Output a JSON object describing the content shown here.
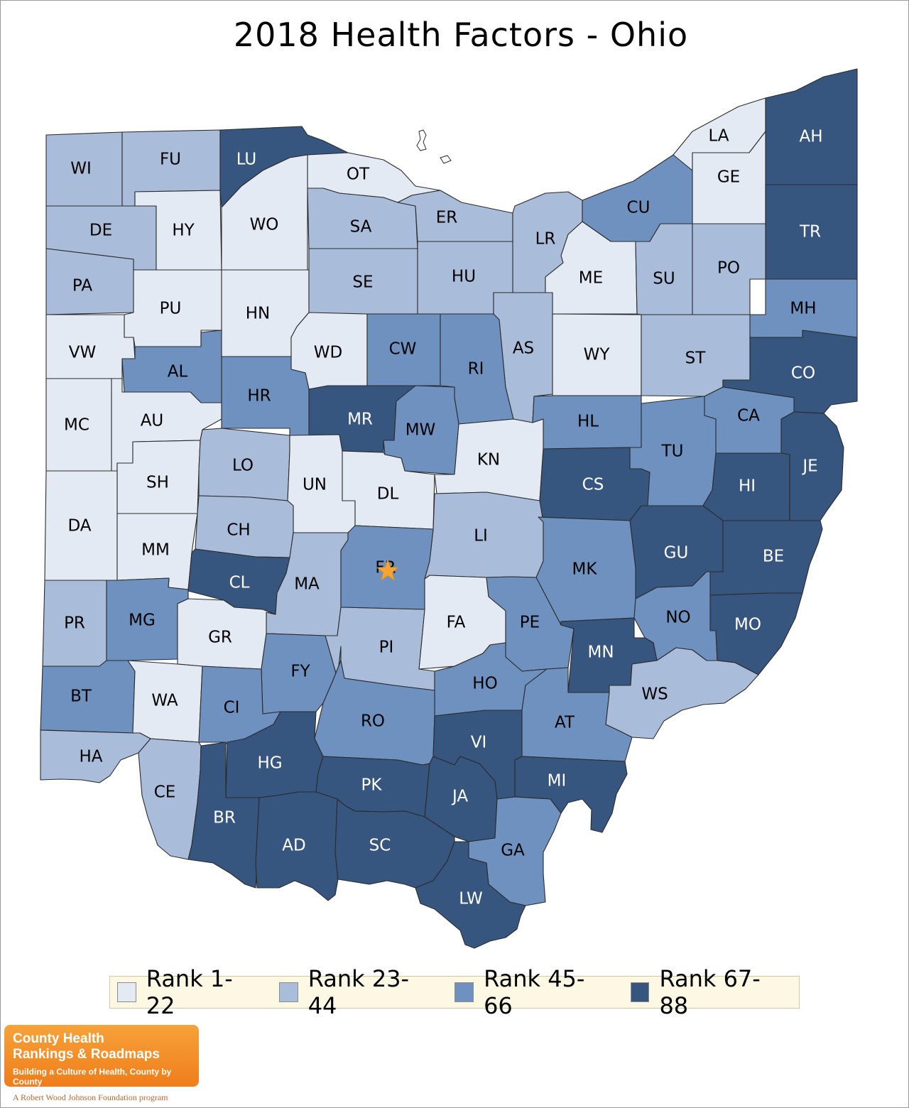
{
  "title": "2018 Health Factors - Ohio",
  "colors": {
    "rank_1_22": "#e3eaf4",
    "rank_23_44": "#a9bcda",
    "rank_45_66": "#6e91c0",
    "rank_67_88": "#36557f",
    "star": "#f4a435"
  },
  "legend": [
    {
      "label": "Rank 1-22",
      "level": "rank_1_22"
    },
    {
      "label": "Rank 23-44",
      "level": "rank_23_44"
    },
    {
      "label": "Rank 45-66",
      "level": "rank_45_66"
    },
    {
      "label": "Rank 67-88",
      "level": "rank_67_88"
    }
  ],
  "highlighted_county": "FR",
  "highlight_icon": "star-icon",
  "counties": [
    {
      "abbr": "WI",
      "level": "rank_23_44"
    },
    {
      "abbr": "FU",
      "level": "rank_23_44"
    },
    {
      "abbr": "LU",
      "level": "rank_67_88"
    },
    {
      "abbr": "OT",
      "level": "rank_1_22"
    },
    {
      "abbr": "LA",
      "level": "rank_1_22"
    },
    {
      "abbr": "AH",
      "level": "rank_67_88"
    },
    {
      "abbr": "GE",
      "level": "rank_1_22"
    },
    {
      "abbr": "DE",
      "level": "rank_23_44"
    },
    {
      "abbr": "HY",
      "level": "rank_1_22"
    },
    {
      "abbr": "WO",
      "level": "rank_1_22"
    },
    {
      "abbr": "SA",
      "level": "rank_23_44"
    },
    {
      "abbr": "ER",
      "level": "rank_23_44"
    },
    {
      "abbr": "LR",
      "level": "rank_23_44"
    },
    {
      "abbr": "CU",
      "level": "rank_45_66"
    },
    {
      "abbr": "TR",
      "level": "rank_67_88"
    },
    {
      "abbr": "PA",
      "level": "rank_23_44"
    },
    {
      "abbr": "PU",
      "level": "rank_1_22"
    },
    {
      "abbr": "HN",
      "level": "rank_1_22"
    },
    {
      "abbr": "SE",
      "level": "rank_23_44"
    },
    {
      "abbr": "HU",
      "level": "rank_23_44"
    },
    {
      "abbr": "ME",
      "level": "rank_1_22"
    },
    {
      "abbr": "SU",
      "level": "rank_23_44"
    },
    {
      "abbr": "PO",
      "level": "rank_23_44"
    },
    {
      "abbr": "MH",
      "level": "rank_45_66"
    },
    {
      "abbr": "VW",
      "level": "rank_1_22"
    },
    {
      "abbr": "AL",
      "level": "rank_45_66"
    },
    {
      "abbr": "WD",
      "level": "rank_1_22"
    },
    {
      "abbr": "CW",
      "level": "rank_45_66"
    },
    {
      "abbr": "RI",
      "level": "rank_45_66"
    },
    {
      "abbr": "AS",
      "level": "rank_23_44"
    },
    {
      "abbr": "WY",
      "level": "rank_1_22"
    },
    {
      "abbr": "ST",
      "level": "rank_23_44"
    },
    {
      "abbr": "CO",
      "level": "rank_67_88"
    },
    {
      "abbr": "MC",
      "level": "rank_1_22"
    },
    {
      "abbr": "AU",
      "level": "rank_1_22"
    },
    {
      "abbr": "HR",
      "level": "rank_45_66"
    },
    {
      "abbr": "MR",
      "level": "rank_67_88"
    },
    {
      "abbr": "MW",
      "level": "rank_45_66"
    },
    {
      "abbr": "HL",
      "level": "rank_45_66"
    },
    {
      "abbr": "CA",
      "level": "rank_45_66"
    },
    {
      "abbr": "SH",
      "level": "rank_1_22"
    },
    {
      "abbr": "LO",
      "level": "rank_23_44"
    },
    {
      "abbr": "UN",
      "level": "rank_1_22"
    },
    {
      "abbr": "DL",
      "level": "rank_1_22"
    },
    {
      "abbr": "KN",
      "level": "rank_1_22"
    },
    {
      "abbr": "TU",
      "level": "rank_45_66"
    },
    {
      "abbr": "JE",
      "level": "rank_67_88"
    },
    {
      "abbr": "CS",
      "level": "rank_67_88"
    },
    {
      "abbr": "HI",
      "level": "rank_67_88"
    },
    {
      "abbr": "DA",
      "level": "rank_1_22"
    },
    {
      "abbr": "MM",
      "level": "rank_1_22"
    },
    {
      "abbr": "CH",
      "level": "rank_23_44"
    },
    {
      "abbr": "LI",
      "level": "rank_23_44"
    },
    {
      "abbr": "GU",
      "level": "rank_67_88"
    },
    {
      "abbr": "BE",
      "level": "rank_67_88"
    },
    {
      "abbr": "CL",
      "level": "rank_67_88"
    },
    {
      "abbr": "MA",
      "level": "rank_23_44"
    },
    {
      "abbr": "FR",
      "level": "rank_45_66"
    },
    {
      "abbr": "MK",
      "level": "rank_45_66"
    },
    {
      "abbr": "PR",
      "level": "rank_23_44"
    },
    {
      "abbr": "MG",
      "level": "rank_45_66"
    },
    {
      "abbr": "GR",
      "level": "rank_1_22"
    },
    {
      "abbr": "FA",
      "level": "rank_1_22"
    },
    {
      "abbr": "PE",
      "level": "rank_45_66"
    },
    {
      "abbr": "NO",
      "level": "rank_45_66"
    },
    {
      "abbr": "MO",
      "level": "rank_67_88"
    },
    {
      "abbr": "PI",
      "level": "rank_23_44"
    },
    {
      "abbr": "FY",
      "level": "rank_45_66"
    },
    {
      "abbr": "MN",
      "level": "rank_67_88"
    },
    {
      "abbr": "BT",
      "level": "rank_45_66"
    },
    {
      "abbr": "WA",
      "level": "rank_1_22"
    },
    {
      "abbr": "CI",
      "level": "rank_45_66"
    },
    {
      "abbr": "HO",
      "level": "rank_45_66"
    },
    {
      "abbr": "WS",
      "level": "rank_23_44"
    },
    {
      "abbr": "RO",
      "level": "rank_45_66"
    },
    {
      "abbr": "AT",
      "level": "rank_45_66"
    },
    {
      "abbr": "VI",
      "level": "rank_67_88"
    },
    {
      "abbr": "HA",
      "level": "rank_23_44"
    },
    {
      "abbr": "HG",
      "level": "rank_67_88"
    },
    {
      "abbr": "PK",
      "level": "rank_67_88"
    },
    {
      "abbr": "MI",
      "level": "rank_67_88"
    },
    {
      "abbr": "CE",
      "level": "rank_23_44"
    },
    {
      "abbr": "JA",
      "level": "rank_67_88"
    },
    {
      "abbr": "BR",
      "level": "rank_67_88"
    },
    {
      "abbr": "AD",
      "level": "rank_67_88"
    },
    {
      "abbr": "SC",
      "level": "rank_67_88"
    },
    {
      "abbr": "GA",
      "level": "rank_45_66"
    },
    {
      "abbr": "LW",
      "level": "rank_67_88"
    }
  ],
  "logo": {
    "line1": "County Health",
    "line2": "Rankings & Roadmaps",
    "tagline": "Building a Culture of Health, County by County"
  },
  "sponsor": "A Robert Wood Johnson Foundation program"
}
